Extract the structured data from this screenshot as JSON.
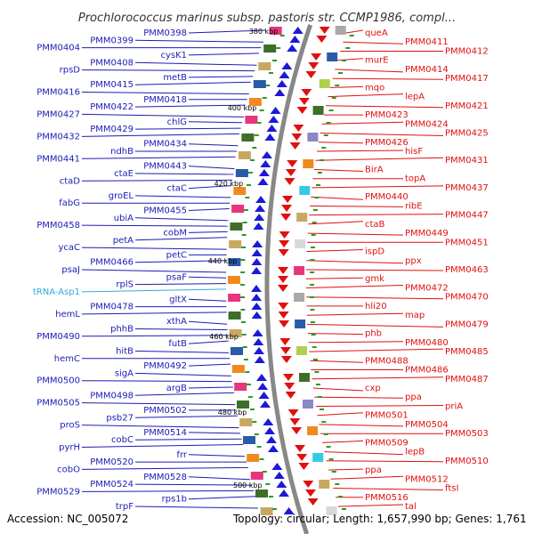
{
  "title": "Prochlorococcus marinus subsp. pastoris str. CCMP1986, compl...",
  "footer": {
    "accession": "Accession: NC_005072",
    "topology": "Topology: circular; Length: 1,657,990 bp; Genes: 1,761"
  },
  "colors": {
    "left_label": "#1c1cb4",
    "right_label": "#e01010",
    "rna_label": "#33aadd",
    "plus_strand": "#1a1ad8",
    "minus_strand": "#e01010",
    "backbone": "#888888",
    "tick": "#2a9a2a"
  },
  "kbp_ticks": [
    {
      "label": "380 kbp"
    },
    {
      "label": "400 kbp"
    },
    {
      "label": "420 kbp"
    },
    {
      "label": "440 kbp"
    },
    {
      "label": "460 kbp"
    },
    {
      "label": "480 kbp"
    },
    {
      "label": "500 kbp"
    }
  ],
  "left_labels": [
    "PMM0398",
    "PMM0399",
    "PMM0404",
    "cysK1",
    "PMM0408",
    "rpsD",
    "metB",
    "PMM0415",
    "PMM0416",
    "PMM0418",
    "PMM0422",
    "PMM0427",
    "chlG",
    "PMM0429",
    "PMM0432",
    "PMM0434",
    "ndhB",
    "PMM0441",
    "PMM0443",
    "ctaE",
    "ctaD",
    "ctaC",
    "groEL",
    "fabG",
    "PMM0455",
    "ubiA",
    "PMM0458",
    "cobM",
    "petA",
    "ycaC",
    "petC",
    "PMM0466",
    "psaJ",
    "psaF",
    "rplS",
    "tRNA-Asp1",
    "gltX",
    "PMM0478",
    "hemL",
    "xthA",
    "phhB",
    "PMM0490",
    "futB",
    "hitB",
    "hemC",
    "PMM0492",
    "sigA",
    "PMM0500",
    "argB",
    "PMM0498",
    "PMM0505",
    "PMM0502",
    "psb27",
    "proS",
    "PMM0514",
    "cobC",
    "pyrH",
    "frr",
    "PMM0520",
    "cobO",
    "PMM0528",
    "PMM0524",
    "PMM0529",
    "rps1b",
    "trpF"
  ],
  "right_labels": [
    "queA",
    "PMM0411",
    "PMM0412",
    "murE",
    "PMM0414",
    "PMM0417",
    "mqo",
    "lepA",
    "PMM0421",
    "PMM0423",
    "PMM0424",
    "PMM0425",
    "PMM0426",
    "hisF",
    "PMM0431",
    "BirA",
    "topA",
    "PMM0437",
    "PMM0440",
    "ribE",
    "PMM0447",
    "ctaB",
    "PMM0449",
    "PMM0451",
    "ispD",
    "ppx",
    "PMM0463",
    "gmk",
    "PMM0472",
    "PMM0470",
    "hli20",
    "map",
    "PMM0479",
    "phb",
    "PMM0480",
    "PMM0485",
    "PMM0488",
    "PMM0486",
    "PMM0487",
    "cxp",
    "ppa",
    "priA",
    "PMM0501",
    "PMM0504",
    "PMM0503",
    "PMM0509",
    "lepB",
    "PMM0510",
    "ppa",
    "PMM0512",
    "ftsI",
    "PMM0516",
    "tal"
  ]
}
